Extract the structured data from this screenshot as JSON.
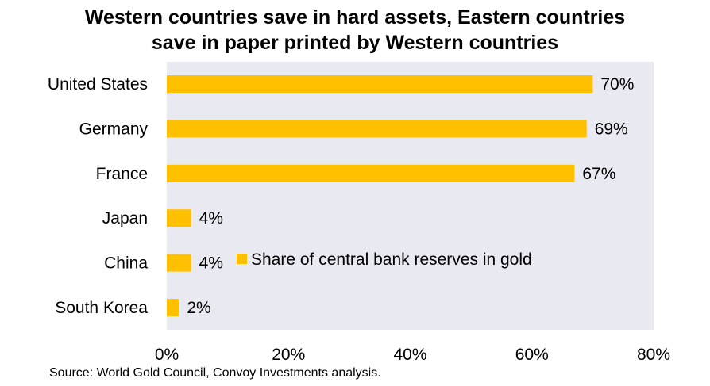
{
  "chart_data": {
    "type": "bar",
    "orientation": "horizontal",
    "title_lines": [
      "Western countries save in hard assets, Eastern countries",
      "save in paper printed by Western countries"
    ],
    "categories": [
      "United States",
      "Germany",
      "France",
      "Japan",
      "China",
      "South Korea"
    ],
    "series": [
      {
        "name": "Share of central bank reserves in gold",
        "values": [
          70,
          69,
          67,
          4,
          4,
          2
        ]
      }
    ],
    "data_labels": [
      "70%",
      "69%",
      "67%",
      "4%",
      "4%",
      "2%"
    ],
    "x_ticks": [
      "0%",
      "20%",
      "40%",
      "60%",
      "80%"
    ],
    "xlim": [
      0,
      80
    ],
    "grid": false,
    "legend_position": "inside-center",
    "colors": {
      "bar": "#FFC000",
      "plot_background": "#E9E9F1"
    },
    "source": "Source: World Gold Council, Convoy Investments analysis."
  }
}
